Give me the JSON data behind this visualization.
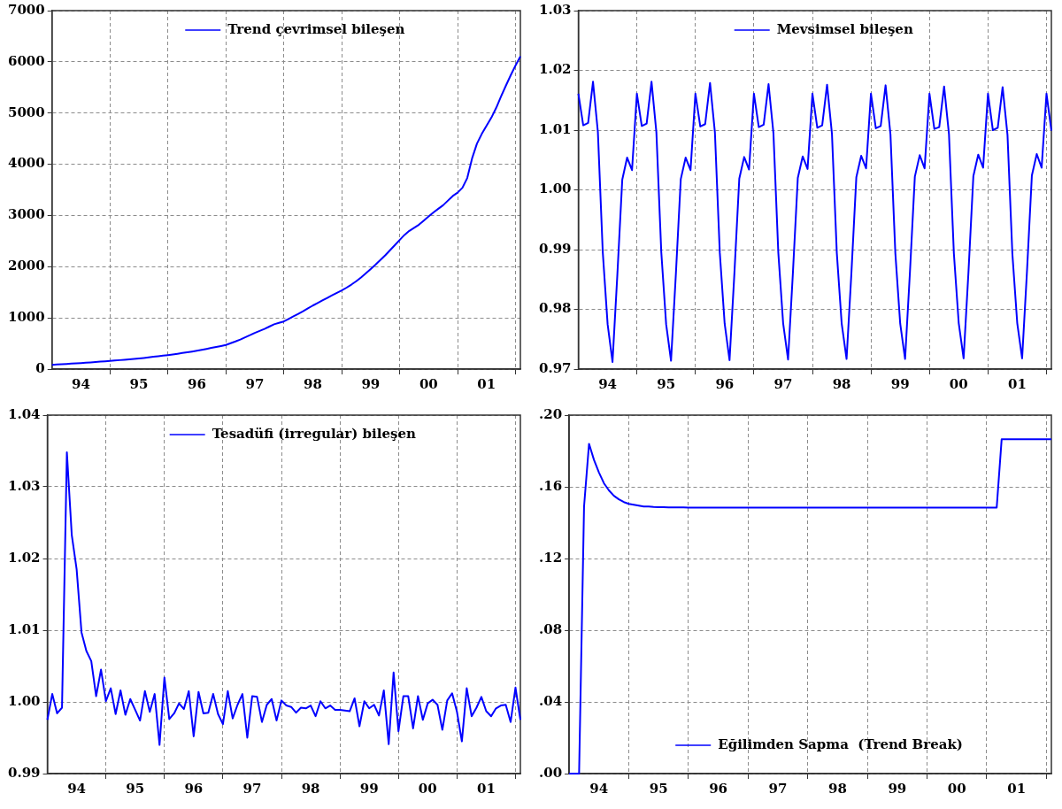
{
  "chart_data": [
    {
      "type": "line",
      "legend": "top",
      "grid": true,
      "x": [
        "1994-01",
        "1994-02",
        "1994-03",
        "1994-04",
        "1994-05",
        "1994-06",
        "1994-07",
        "1994-08",
        "1994-09",
        "1994-10",
        "1994-11",
        "1994-12",
        "1995-01",
        "1995-02",
        "1995-03",
        "1995-04",
        "1995-05",
        "1995-06",
        "1995-07",
        "1995-08",
        "1995-09",
        "1995-10",
        "1995-11",
        "1995-12",
        "1996-01",
        "1996-02",
        "1996-03",
        "1996-04",
        "1996-05",
        "1996-06",
        "1996-07",
        "1996-08",
        "1996-09",
        "1996-10",
        "1996-11",
        "1996-12",
        "1997-01",
        "1997-02",
        "1997-03",
        "1997-04",
        "1997-05",
        "1997-06",
        "1997-07",
        "1997-08",
        "1997-09",
        "1997-10",
        "1997-11",
        "1997-12",
        "1998-01",
        "1998-02",
        "1998-03",
        "1998-04",
        "1998-05",
        "1998-06",
        "1998-07",
        "1998-08",
        "1998-09",
        "1998-10",
        "1998-11",
        "1998-12",
        "1999-01",
        "1999-02",
        "1999-03",
        "1999-04",
        "1999-05",
        "1999-06",
        "1999-07",
        "1999-08",
        "1999-09",
        "1999-10",
        "1999-11",
        "1999-12",
        "2000-01",
        "2000-02",
        "2000-03",
        "2000-04",
        "2000-05",
        "2000-06",
        "2000-07",
        "2000-08",
        "2000-09",
        "2000-10",
        "2000-11",
        "2000-12",
        "2001-01",
        "2001-02",
        "2001-03",
        "2001-04",
        "2001-05",
        "2001-06",
        "2001-07",
        "2001-08",
        "2001-09",
        "2001-10",
        "2001-11",
        "2001-12",
        "2002-01",
        "2002-02"
      ],
      "xlim": [
        "1994-01",
        "2002-02"
      ],
      "xticks": [
        {
          "value": "1994-07",
          "label": "94"
        },
        {
          "value": "1995-01",
          "label": null
        },
        {
          "value": "1995-07",
          "label": "95"
        },
        {
          "value": "1996-01",
          "label": null
        },
        {
          "value": "1996-07",
          "label": "96"
        },
        {
          "value": "1997-01",
          "label": null
        },
        {
          "value": "1997-07",
          "label": "97"
        },
        {
          "value": "1998-01",
          "label": null
        },
        {
          "value": "1998-07",
          "label": "98"
        },
        {
          "value": "1999-01",
          "label": null
        },
        {
          "value": "1999-07",
          "label": "99"
        },
        {
          "value": "2000-01",
          "label": null
        },
        {
          "value": "2000-07",
          "label": "00"
        },
        {
          "value": "2001-01",
          "label": null
        },
        {
          "value": "2001-07",
          "label": "01"
        },
        {
          "value": "2002-01",
          "label": null
        }
      ],
      "ylim": [
        0,
        7000
      ],
      "yticks": [
        0,
        1000,
        2000,
        3000,
        4000,
        5000,
        6000,
        7000
      ],
      "series": [
        {
          "name": "Trend çevrimsel bileşen",
          "color": "#0000ff",
          "values": [
            83,
            89,
            95,
            101,
            107,
            112,
            118,
            124,
            130,
            137,
            145,
            152,
            159,
            167,
            175,
            183,
            192,
            200,
            209,
            218,
            228,
            240,
            252,
            263,
            274,
            287,
            300,
            314,
            328,
            343,
            358,
            375,
            394,
            413,
            432,
            451,
            471,
            505,
            540,
            578,
            620,
            662,
            707,
            745,
            785,
            830,
            875,
            903,
            930,
            978,
            1030,
            1080,
            1130,
            1185,
            1240,
            1290,
            1340,
            1390,
            1440,
            1490,
            1535,
            1590,
            1650,
            1715,
            1790,
            1870,
            1955,
            2040,
            2130,
            2220,
            2320,
            2420,
            2522,
            2620,
            2700,
            2760,
            2820,
            2900,
            2980,
            3060,
            3130,
            3200,
            3290,
            3380,
            3446,
            3541,
            3732,
            4115,
            4401,
            4592,
            4752,
            4911,
            5102,
            5325,
            5535,
            5739,
            5930,
            6108
          ]
        }
      ]
    },
    {
      "type": "line",
      "legend": "top",
      "grid": true,
      "x": [
        "1994-01",
        "1994-02",
        "1994-03",
        "1994-04",
        "1994-05",
        "1994-06",
        "1994-07",
        "1994-08",
        "1994-09",
        "1994-10",
        "1994-11",
        "1994-12",
        "1995-01",
        "1995-02",
        "1995-03",
        "1995-04",
        "1995-05",
        "1995-06",
        "1995-07",
        "1995-08",
        "1995-09",
        "1995-10",
        "1995-11",
        "1995-12",
        "1996-01",
        "1996-02",
        "1996-03",
        "1996-04",
        "1996-05",
        "1996-06",
        "1996-07",
        "1996-08",
        "1996-09",
        "1996-10",
        "1996-11",
        "1996-12",
        "1997-01",
        "1997-02",
        "1997-03",
        "1997-04",
        "1997-05",
        "1997-06",
        "1997-07",
        "1997-08",
        "1997-09",
        "1997-10",
        "1997-11",
        "1997-12",
        "1998-01",
        "1998-02",
        "1998-03",
        "1998-04",
        "1998-05",
        "1998-06",
        "1998-07",
        "1998-08",
        "1998-09",
        "1998-10",
        "1998-11",
        "1998-12",
        "1999-01",
        "1999-02",
        "1999-03",
        "1999-04",
        "1999-05",
        "1999-06",
        "1999-07",
        "1999-08",
        "1999-09",
        "1999-10",
        "1999-11",
        "1999-12",
        "2000-01",
        "2000-02",
        "2000-03",
        "2000-04",
        "2000-05",
        "2000-06",
        "2000-07",
        "2000-08",
        "2000-09",
        "2000-10",
        "2000-11",
        "2000-12",
        "2001-01",
        "2001-02",
        "2001-03",
        "2001-04",
        "2001-05",
        "2001-06",
        "2001-07",
        "2001-08",
        "2001-09",
        "2001-10",
        "2001-11",
        "2001-12",
        "2002-01",
        "2002-02"
      ],
      "xlim": [
        "1994-01",
        "2002-02"
      ],
      "xticks": [
        {
          "value": "1994-07",
          "label": "94"
        },
        {
          "value": "1995-01",
          "label": null
        },
        {
          "value": "1995-07",
          "label": "95"
        },
        {
          "value": "1996-01",
          "label": null
        },
        {
          "value": "1996-07",
          "label": "96"
        },
        {
          "value": "1997-01",
          "label": null
        },
        {
          "value": "1997-07",
          "label": "97"
        },
        {
          "value": "1998-01",
          "label": null
        },
        {
          "value": "1998-07",
          "label": "98"
        },
        {
          "value": "1999-01",
          "label": null
        },
        {
          "value": "1999-07",
          "label": "99"
        },
        {
          "value": "2000-01",
          "label": null
        },
        {
          "value": "2000-07",
          "label": "00"
        },
        {
          "value": "2001-01",
          "label": null
        },
        {
          "value": "2001-07",
          "label": "01"
        },
        {
          "value": "2002-01",
          "label": null
        }
      ],
      "ylim": [
        0.97,
        1.03
      ],
      "yticks": [
        0.97,
        0.98,
        0.99,
        {
          "value": 1,
          "label": "1.00"
        },
        1.01,
        1.02,
        1.03
      ],
      "series": [
        {
          "name": "Mevsimsel bileşen",
          "color": "#0000ff",
          "values": [
            1.0161,
            1.0108,
            1.0112,
            1.0181,
            1.0097,
            0.9896,
            0.9775,
            0.9712,
            0.9859,
            1.0017,
            1.0054,
            1.0033,
            1.0161,
            1.0107,
            1.0111,
            1.0181,
            1.0096,
            0.9896,
            0.9775,
            0.9714,
            0.986,
            1.0018,
            1.0054,
            1.0033,
            1.0161,
            1.0106,
            1.011,
            1.0179,
            1.0096,
            0.9895,
            0.9776,
            0.9715,
            0.9861,
            1.0019,
            1.0055,
            1.0034,
            1.0161,
            1.0105,
            1.0109,
            1.0177,
            1.0095,
            0.9895,
            0.9776,
            0.9716,
            0.9862,
            1.002,
            1.0056,
            1.0035,
            1.0161,
            1.0104,
            1.0108,
            1.0176,
            1.0094,
            0.9894,
            0.9776,
            0.9717,
            0.9862,
            1.0021,
            1.0057,
            1.0036,
            1.0161,
            1.0103,
            1.0107,
            1.0175,
            1.0093,
            0.9894,
            0.9776,
            0.9717,
            0.9863,
            1.0022,
            1.0058,
            1.0036,
            1.0161,
            1.0102,
            1.0105,
            1.0173,
            1.0093,
            0.9894,
            0.9777,
            0.9718,
            0.9863,
            1.0023,
            1.0059,
            1.0037,
            1.0161,
            1.01,
            1.0104,
            1.0172,
            1.0092,
            0.9893,
            0.9777,
            0.9718,
            0.9864,
            1.0024,
            1.006,
            1.0037,
            1.0161,
            1.0099
          ]
        }
      ]
    },
    {
      "type": "line",
      "legend": "top",
      "grid": true,
      "x": [
        "1994-01",
        "1994-02",
        "1994-03",
        "1994-04",
        "1994-05",
        "1994-06",
        "1994-07",
        "1994-08",
        "1994-09",
        "1994-10",
        "1994-11",
        "1994-12",
        "1995-01",
        "1995-02",
        "1995-03",
        "1995-04",
        "1995-05",
        "1995-06",
        "1995-07",
        "1995-08",
        "1995-09",
        "1995-10",
        "1995-11",
        "1995-12",
        "1996-01",
        "1996-02",
        "1996-03",
        "1996-04",
        "1996-05",
        "1996-06",
        "1996-07",
        "1996-08",
        "1996-09",
        "1996-10",
        "1996-11",
        "1996-12",
        "1997-01",
        "1997-02",
        "1997-03",
        "1997-04",
        "1997-05",
        "1997-06",
        "1997-07",
        "1997-08",
        "1997-09",
        "1997-10",
        "1997-11",
        "1997-12",
        "1998-01",
        "1998-02",
        "1998-03",
        "1998-04",
        "1998-05",
        "1998-06",
        "1998-07",
        "1998-08",
        "1998-09",
        "1998-10",
        "1998-11",
        "1998-12",
        "1999-01",
        "1999-02",
        "1999-03",
        "1999-04",
        "1999-05",
        "1999-06",
        "1999-07",
        "1999-08",
        "1999-09",
        "1999-10",
        "1999-11",
        "1999-12",
        "2000-01",
        "2000-02",
        "2000-03",
        "2000-04",
        "2000-05",
        "2000-06",
        "2000-07",
        "2000-08",
        "2000-09",
        "2000-10",
        "2000-11",
        "2000-12",
        "2001-01",
        "2001-02",
        "2001-03",
        "2001-04",
        "2001-05",
        "2001-06",
        "2001-07",
        "2001-08",
        "2001-09",
        "2001-10",
        "2001-11",
        "2001-12",
        "2002-01",
        "2002-02"
      ],
      "xlim": [
        "1994-01",
        "2002-02"
      ],
      "xticks": [
        {
          "value": "1994-07",
          "label": "94"
        },
        {
          "value": "1995-01",
          "label": null
        },
        {
          "value": "1995-07",
          "label": "95"
        },
        {
          "value": "1996-01",
          "label": null
        },
        {
          "value": "1996-07",
          "label": "96"
        },
        {
          "value": "1997-01",
          "label": null
        },
        {
          "value": "1997-07",
          "label": "97"
        },
        {
          "value": "1998-01",
          "label": null
        },
        {
          "value": "1998-07",
          "label": "98"
        },
        {
          "value": "1999-01",
          "label": null
        },
        {
          "value": "1999-07",
          "label": "99"
        },
        {
          "value": "2000-01",
          "label": null
        },
        {
          "value": "2000-07",
          "label": "00"
        },
        {
          "value": "2001-01",
          "label": null
        },
        {
          "value": "2001-07",
          "label": "01"
        },
        {
          "value": "2002-01",
          "label": null
        }
      ],
      "ylim": [
        0.99,
        1.04
      ],
      "yticks": [
        0.99,
        {
          "value": 1,
          "label": "1.00"
        },
        1.01,
        1.02,
        1.03,
        1.04
      ],
      "series": [
        {
          "name": "Tesadüfi (irregular) bileşen",
          "color": "#0000ff",
          "values": [
            0.9975,
            1.0011,
            0.9984,
            0.9992,
            1.0348,
            1.0233,
            1.0185,
            1.0097,
            1.0071,
            1.0057,
            1.0008,
            1.0045,
            1.0001,
            1.0019,
            0.9983,
            1.0016,
            0.9982,
            1.0004,
            0.9989,
            0.9974,
            1.0015,
            0.9986,
            1.0011,
            0.994,
            1.0034,
            0.9976,
            0.9984,
            0.9998,
            0.999,
            1.0015,
            0.9952,
            1.0014,
            0.9984,
            0.9985,
            1.0011,
            0.9983,
            0.9969,
            1.0015,
            0.9977,
            0.9996,
            1.0011,
            0.995,
            1.0008,
            1.0007,
            0.9972,
            0.9996,
            1.0004,
            0.9974,
            1.0002,
            0.9995,
            0.9993,
            0.9985,
            0.9992,
            0.9991,
            0.9995,
            0.998,
            1.0001,
            0.9991,
            0.9995,
            0.9989,
            0.9989,
            0.9988,
            0.9987,
            1.0005,
            0.9966,
            1.0001,
            0.9991,
            0.9996,
            0.9981,
            1.0016,
            0.9941,
            1.0041,
            0.9959,
            1.0008,
            1.0008,
            0.9963,
            1.0008,
            0.9975,
            0.9998,
            1.0003,
            0.9996,
            0.9961,
            1.0002,
            1.0012,
            0.9986,
            0.9945,
            1.0019,
            0.998,
            0.9992,
            1.0007,
            0.9987,
            0.998,
            0.9991,
            0.9995,
            0.9996,
            0.9972,
            1.002,
            0.9975
          ]
        }
      ]
    },
    {
      "type": "line",
      "legend": "bottom",
      "grid": true,
      "x": [
        "1994-01",
        "1994-02",
        "1994-03",
        "1994-04",
        "1994-05",
        "1994-06",
        "1994-07",
        "1994-08",
        "1994-09",
        "1994-10",
        "1994-11",
        "1994-12",
        "1995-01",
        "1995-02",
        "1995-03",
        "1995-04",
        "1995-05",
        "1995-06",
        "1995-07",
        "1995-08",
        "1995-09",
        "1995-10",
        "1995-11",
        "1995-12",
        "1996-01",
        "1996-02",
        "1996-03",
        "1996-04",
        "1996-05",
        "1996-06",
        "1996-07",
        "1996-08",
        "1996-09",
        "1996-10",
        "1996-11",
        "1996-12",
        "1997-01",
        "1997-02",
        "1997-03",
        "1997-04",
        "1997-05",
        "1997-06",
        "1997-07",
        "1997-08",
        "1997-09",
        "1997-10",
        "1997-11",
        "1997-12",
        "1998-01",
        "1998-02",
        "1998-03",
        "1998-04",
        "1998-05",
        "1998-06",
        "1998-07",
        "1998-08",
        "1998-09",
        "1998-10",
        "1998-11",
        "1998-12",
        "1999-01",
        "1999-02",
        "1999-03",
        "1999-04",
        "1999-05",
        "1999-06",
        "1999-07",
        "1999-08",
        "1999-09",
        "1999-10",
        "1999-11",
        "1999-12",
        "2000-01",
        "2000-02",
        "2000-03",
        "2000-04",
        "2000-05",
        "2000-06",
        "2000-07",
        "2000-08",
        "2000-09",
        "2000-10",
        "2000-11",
        "2000-12",
        "2001-01",
        "2001-02",
        "2001-03",
        "2001-04",
        "2001-05",
        "2001-06",
        "2001-07",
        "2001-08",
        "2001-09",
        "2001-10",
        "2001-11",
        "2001-12",
        "2002-01",
        "2002-02"
      ],
      "xlim": [
        "1994-01",
        "2002-02"
      ],
      "xticks": [
        {
          "value": "1994-07",
          "label": "94"
        },
        {
          "value": "1995-01",
          "label": null
        },
        {
          "value": "1995-07",
          "label": "95"
        },
        {
          "value": "1996-01",
          "label": null
        },
        {
          "value": "1996-07",
          "label": "96"
        },
        {
          "value": "1997-01",
          "label": null
        },
        {
          "value": "1997-07",
          "label": "97"
        },
        {
          "value": "1998-01",
          "label": null
        },
        {
          "value": "1998-07",
          "label": "98"
        },
        {
          "value": "1999-01",
          "label": null
        },
        {
          "value": "1999-07",
          "label": "99"
        },
        {
          "value": "2000-01",
          "label": null
        },
        {
          "value": "2000-07",
          "label": "00"
        },
        {
          "value": "2001-01",
          "label": null
        },
        {
          "value": "2001-07",
          "label": "01"
        },
        {
          "value": "2002-01",
          "label": null
        }
      ],
      "ylim": [
        0,
        0.2
      ],
      "yticks": [
        {
          "value": 0,
          "label": ".00"
        },
        {
          "value": 0.04,
          "label": ".04"
        },
        {
          "value": 0.08,
          "label": ".08"
        },
        {
          "value": 0.12,
          "label": ".12"
        },
        {
          "value": 0.16,
          "label": ".16"
        },
        {
          "value": 0.2,
          "label": ".20"
        }
      ],
      "series": [
        {
          "name": "Eğilimden Sapma  (Trend Break)",
          "color": "#0000ff",
          "values": [
            0,
            0,
            0,
            0.149,
            0.184,
            0.175,
            0.168,
            0.162,
            0.158,
            0.155,
            0.153,
            0.1515,
            0.1505,
            0.15,
            0.1495,
            0.149,
            0.149,
            0.1488,
            0.1487,
            0.1486,
            0.1485,
            0.1485,
            0.1485,
            0.1485,
            0.1484,
            0.1484,
            0.1484,
            0.1484,
            0.1484,
            0.1484,
            0.1484,
            0.1484,
            0.1484,
            0.1484,
            0.1484,
            0.1484,
            0.1484,
            0.1484,
            0.1484,
            0.1484,
            0.1484,
            0.1484,
            0.1484,
            0.1484,
            0.1484,
            0.1484,
            0.1484,
            0.1484,
            0.1484,
            0.1484,
            0.1484,
            0.1484,
            0.1484,
            0.1484,
            0.1484,
            0.1484,
            0.1484,
            0.1484,
            0.1484,
            0.1484,
            0.1484,
            0.1484,
            0.1484,
            0.1484,
            0.1484,
            0.1484,
            0.1484,
            0.1484,
            0.1484,
            0.1484,
            0.1484,
            0.1484,
            0.1484,
            0.1484,
            0.1484,
            0.1484,
            0.1484,
            0.1484,
            0.1484,
            0.1484,
            0.1484,
            0.1484,
            0.1484,
            0.1484,
            0.1484,
            0.1484,
            0.1484,
            0.1866,
            0.1866,
            0.1866,
            0.1866,
            0.1866,
            0.1866,
            0.1866,
            0.1866,
            0.1866,
            0.1866,
            0.1866
          ]
        }
      ]
    }
  ]
}
